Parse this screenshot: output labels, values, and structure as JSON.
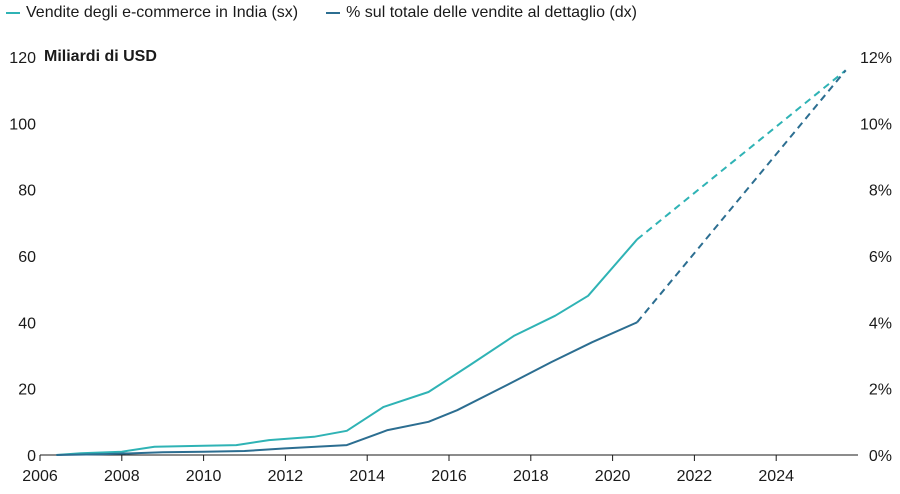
{
  "chart_data": {
    "type": "line",
    "legend": {
      "position": "top-left",
      "items": [
        {
          "label": "Vendite degli e-commerce in India (sx)",
          "color": "#2fb3b5"
        },
        {
          "label": "% sul totale delle vendite al dettaglio (dx)",
          "color": "#2c6e91"
        }
      ]
    },
    "units_label": "Miliardi di USD",
    "x_ticks": [
      "2006",
      "2008",
      "2010",
      "2012",
      "2014",
      "2016",
      "2018",
      "2020",
      "2022",
      "2024"
    ],
    "x_range": [
      2006,
      2026
    ],
    "y_left": {
      "range": [
        0,
        120
      ],
      "ticks": [
        "0",
        "20",
        "40",
        "60",
        "80",
        "100",
        "120"
      ]
    },
    "y_right": {
      "range": [
        0,
        12
      ],
      "ticks": [
        "0%",
        "2%",
        "4%",
        "6%",
        "8%",
        "10%",
        "12%"
      ]
    },
    "grid": false,
    "series": [
      {
        "name": "Vendite degli e-commerce in India (sx)",
        "axis": "left",
        "color": "#2fb3b5",
        "points": [
          [
            2006.4,
            0
          ],
          [
            2007,
            0.5
          ],
          [
            2008,
            1
          ],
          [
            2008.8,
            2.5
          ],
          [
            2010,
            2.8
          ],
          [
            2010.8,
            3
          ],
          [
            2011.6,
            4.5
          ],
          [
            2012.7,
            5.5
          ],
          [
            2013.5,
            7.3
          ],
          [
            2014.4,
            14.5
          ],
          [
            2015.5,
            19
          ],
          [
            2016.5,
            27
          ],
          [
            2017.6,
            36
          ],
          [
            2018.6,
            42
          ],
          [
            2019.4,
            48
          ],
          [
            2020.6,
            65
          ]
        ],
        "projection": [
          [
            2020.6,
            65
          ],
          [
            2025.7,
            116
          ]
        ]
      },
      {
        "name": "% sul totale delle vendite al dettaglio (dx)",
        "axis": "right",
        "color": "#2c6e91",
        "points": [
          [
            2006.4,
            0
          ],
          [
            2007.5,
            0.02
          ],
          [
            2009,
            0.08
          ],
          [
            2010,
            0.1
          ],
          [
            2011,
            0.12
          ],
          [
            2012,
            0.2
          ],
          [
            2013.5,
            0.3
          ],
          [
            2014.5,
            0.75
          ],
          [
            2015.5,
            1.0
          ],
          [
            2016.2,
            1.35
          ],
          [
            2017.4,
            2.1
          ],
          [
            2018.5,
            2.8
          ],
          [
            2019.5,
            3.4
          ],
          [
            2020.6,
            4.0
          ]
        ],
        "projection": [
          [
            2020.6,
            4.0
          ],
          [
            2025.7,
            11.6
          ]
        ]
      }
    ]
  }
}
